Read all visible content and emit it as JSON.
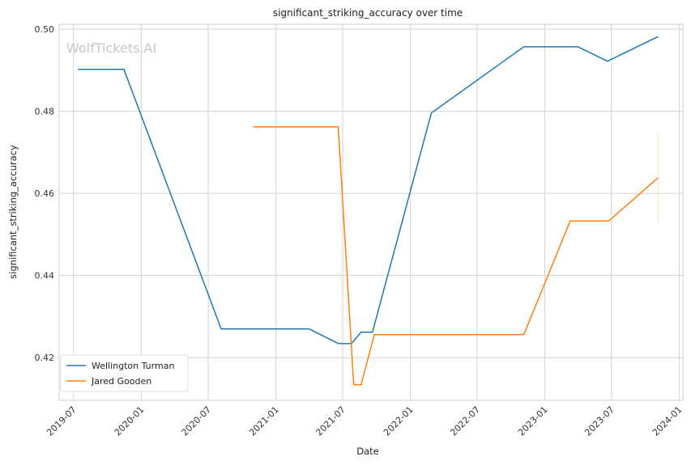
{
  "chart_data": {
    "type": "line",
    "title": "significant_striking_accuracy over time",
    "xlabel": "Date",
    "ylabel": "significant_striking_accuracy",
    "watermark": "WolfTickets.AI",
    "grid": true,
    "legend_position": "lower-left",
    "xlim": [
      "2019-05-23",
      "2024-01-11"
    ],
    "ylim": [
      0.4096,
      0.5012
    ],
    "x_ticks": [
      "2019-07",
      "2020-01",
      "2020-07",
      "2021-01",
      "2021-07",
      "2022-01",
      "2022-07",
      "2023-01",
      "2023-07",
      "2024-01"
    ],
    "y_ticks": [
      "0.42",
      "0.44",
      "0.46",
      "0.48",
      "0.50"
    ],
    "series": [
      {
        "name": "Wellington Turman",
        "color": "#1f77b4",
        "x": [
          "2019-07-13",
          "2019-11-15",
          "2020-08-05",
          "2021-04-01",
          "2021-06-20",
          "2021-07-25",
          "2021-08-20",
          "2021-09-20",
          "2022-02-27",
          "2022-11-05",
          "2023-04-01",
          "2023-06-20",
          "2023-11-05"
        ],
        "y": [
          0.4902,
          0.4902,
          0.427,
          0.427,
          0.4234,
          0.4234,
          0.4262,
          0.4262,
          0.4796,
          0.4957,
          0.4957,
          0.4922,
          0.4982
        ]
      },
      {
        "name": "Jared Gooden",
        "color": "#ff7f0e",
        "x": [
          "2020-10-31",
          "2021-06-19",
          "2021-07-31",
          "2021-08-20",
          "2021-09-25",
          "2022-11-05",
          "2023-03-11",
          "2023-06-24",
          "2023-11-04"
        ],
        "y": [
          0.4762,
          0.4762,
          0.4134,
          0.4134,
          0.4256,
          0.4256,
          0.4533,
          0.4533,
          0.4638
        ]
      }
    ],
    "error_band": {
      "series": "Jared Gooden",
      "x": "2023-11-04",
      "low": 0.453,
      "high": 0.4745
    }
  }
}
